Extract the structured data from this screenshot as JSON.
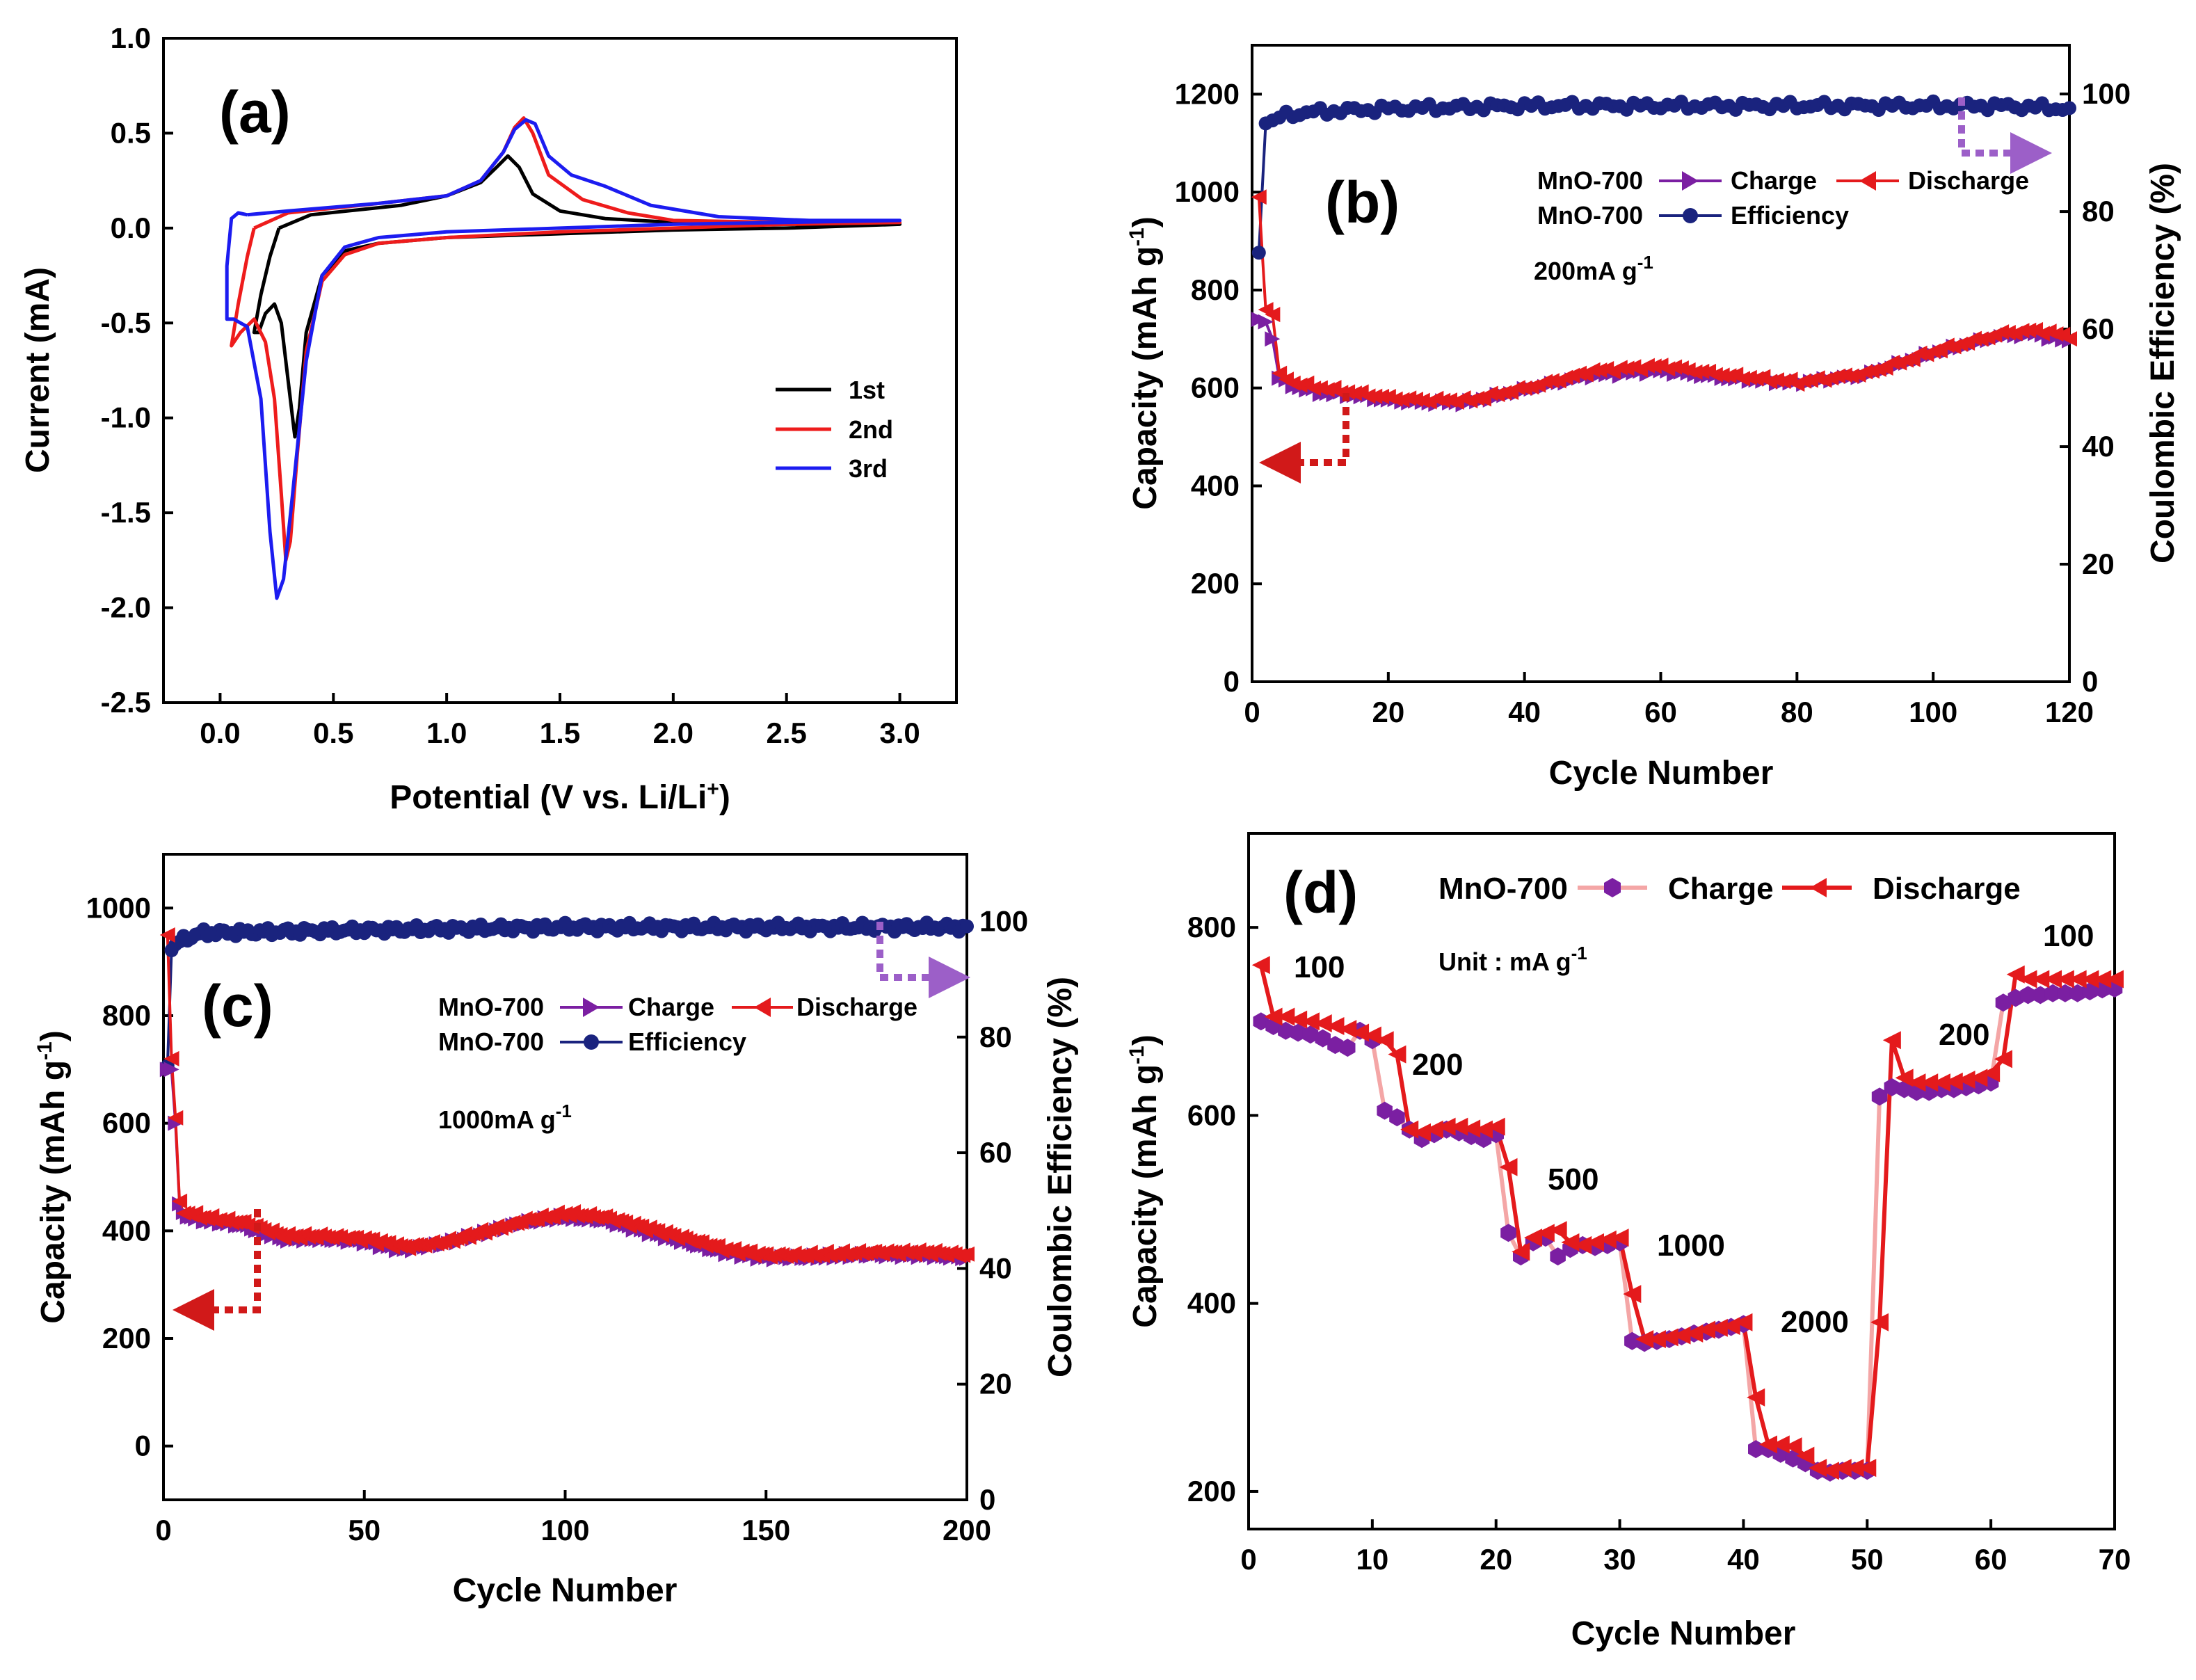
{
  "chart_data": [
    {
      "id": "a",
      "type": "line",
      "panel_label": "(a)",
      "xlabel": "Potential (V vs. Li/Li",
      "xlabel_sup": "+",
      "xlabel_end": ")",
      "ylabel": "Current (mA)",
      "xlim": [
        -0.25,
        3.25
      ],
      "ylim": [
        -2.5,
        1.0
      ],
      "xticks": [
        "0.0",
        "0.5",
        "1.0",
        "1.5",
        "2.0",
        "2.5",
        "3.0"
      ],
      "yticks": [
        "-2.5",
        "-2.0",
        "-1.5",
        "-1.0",
        "-0.5",
        "0.0",
        "0.5",
        "1.0"
      ],
      "series": [
        {
          "name": "1st",
          "color": "#000000",
          "x": [
            0.26,
            0.4,
            0.8,
            1.0,
            1.15,
            1.22,
            1.27,
            1.32,
            1.38,
            1.5,
            1.7,
            2.0,
            2.5,
            3.0,
            2.5,
            2.0,
            1.5,
            1.0,
            0.7,
            0.55,
            0.45,
            0.38,
            0.35,
            0.33,
            0.3,
            0.27,
            0.24,
            0.2,
            0.17,
            0.15,
            0.18,
            0.22,
            0.26
          ],
          "y": [
            0.0,
            0.07,
            0.12,
            0.17,
            0.24,
            0.32,
            0.38,
            0.32,
            0.18,
            0.09,
            0.05,
            0.03,
            0.02,
            0.02,
            0.0,
            -0.01,
            -0.03,
            -0.05,
            -0.08,
            -0.12,
            -0.25,
            -0.55,
            -0.95,
            -1.1,
            -0.8,
            -0.5,
            -0.4,
            -0.45,
            -0.55,
            -0.55,
            -0.35,
            -0.15,
            0.0
          ]
        },
        {
          "name": "2nd",
          "color": "#ee1c1c",
          "x": [
            0.15,
            0.3,
            0.7,
            1.0,
            1.15,
            1.25,
            1.3,
            1.34,
            1.38,
            1.45,
            1.6,
            1.8,
            2.0,
            2.5,
            3.0,
            2.5,
            2.0,
            1.5,
            1.0,
            0.7,
            0.55,
            0.45,
            0.38,
            0.34,
            0.31,
            0.29,
            0.27,
            0.24,
            0.2,
            0.15,
            0.09,
            0.05,
            0.08,
            0.12,
            0.15
          ],
          "y": [
            0.0,
            0.08,
            0.13,
            0.17,
            0.25,
            0.4,
            0.53,
            0.58,
            0.5,
            0.28,
            0.15,
            0.08,
            0.04,
            0.03,
            0.03,
            0.02,
            0.0,
            -0.02,
            -0.05,
            -0.08,
            -0.14,
            -0.28,
            -0.65,
            -1.2,
            -1.65,
            -1.75,
            -1.4,
            -0.9,
            -0.6,
            -0.48,
            -0.55,
            -0.62,
            -0.4,
            -0.15,
            0.0
          ]
        },
        {
          "name": "3rd",
          "color": "#1c1cf0",
          "x": [
            0.12,
            0.3,
            0.7,
            1.0,
            1.15,
            1.25,
            1.3,
            1.35,
            1.39,
            1.45,
            1.55,
            1.7,
            1.9,
            2.2,
            2.6,
            3.0,
            2.5,
            2.0,
            1.5,
            1.0,
            0.7,
            0.55,
            0.45,
            0.38,
            0.32,
            0.28,
            0.25,
            0.22,
            0.18,
            0.12,
            0.06,
            0.03,
            0.03,
            0.05,
            0.08,
            0.12
          ],
          "y": [
            0.07,
            0.09,
            0.13,
            0.17,
            0.25,
            0.4,
            0.52,
            0.57,
            0.55,
            0.38,
            0.28,
            0.22,
            0.12,
            0.06,
            0.04,
            0.04,
            0.03,
            0.02,
            0.0,
            -0.02,
            -0.05,
            -0.1,
            -0.25,
            -0.7,
            -1.4,
            -1.85,
            -1.95,
            -1.6,
            -0.9,
            -0.52,
            -0.48,
            -0.48,
            -0.2,
            0.05,
            0.08,
            0.07
          ]
        }
      ]
    },
    {
      "id": "b",
      "type": "scatter",
      "panel_label": "(b)",
      "xlabel": "Cycle Number",
      "ylabel": "Capacity (mAh g",
      "ylabel_sup": "-1",
      "ylabel_end": ")",
      "y2label": "Coulombic Efficiency (%)",
      "xlim": [
        0,
        120
      ],
      "ylim": [
        0,
        1300
      ],
      "y2lim": [
        0,
        108.3
      ],
      "xticks": [
        "0",
        "20",
        "40",
        "60",
        "80",
        "100",
        "120"
      ],
      "yticks": [
        "0",
        "200",
        "400",
        "600",
        "800",
        "1000",
        "1200"
      ],
      "y2ticks": [
        "0",
        "20",
        "40",
        "60",
        "80",
        "100"
      ],
      "legend": {
        "prefix1": "MnO-700",
        "charge": "Charge",
        "discharge": "Discharge",
        "prefix2": "MnO-700",
        "efficiency": "Efficiency"
      },
      "current_label": "200mA g",
      "current_sup": "-1",
      "cycles": 120,
      "charge_anchors": [
        [
          1,
          740
        ],
        [
          2,
          735
        ],
        [
          3,
          700
        ],
        [
          4,
          620
        ],
        [
          6,
          605
        ],
        [
          10,
          590
        ],
        [
          15,
          585
        ],
        [
          20,
          575
        ],
        [
          25,
          570
        ],
        [
          32,
          570
        ],
        [
          40,
          595
        ],
        [
          50,
          625
        ],
        [
          60,
          635
        ],
        [
          70,
          620
        ],
        [
          80,
          610
        ],
        [
          90,
          625
        ],
        [
          100,
          670
        ],
        [
          110,
          705
        ],
        [
          115,
          710
        ],
        [
          120,
          695
        ]
      ],
      "discharge_anchors": [
        [
          1,
          990
        ],
        [
          2,
          760
        ],
        [
          3,
          750
        ],
        [
          4,
          630
        ],
        [
          6,
          610
        ],
        [
          10,
          600
        ],
        [
          15,
          590
        ],
        [
          20,
          580
        ],
        [
          25,
          575
        ],
        [
          32,
          575
        ],
        [
          40,
          600
        ],
        [
          50,
          635
        ],
        [
          60,
          645
        ],
        [
          70,
          625
        ],
        [
          80,
          612
        ],
        [
          90,
          630
        ],
        [
          100,
          675
        ],
        [
          110,
          712
        ],
        [
          115,
          718
        ],
        [
          120,
          705
        ]
      ],
      "efficiency_anchors": [
        [
          1,
          73
        ],
        [
          2,
          95
        ],
        [
          3,
          95.5
        ],
        [
          5,
          96.5
        ],
        [
          10,
          97
        ],
        [
          20,
          97.5
        ],
        [
          40,
          98
        ],
        [
          60,
          98
        ],
        [
          80,
          98
        ],
        [
          100,
          98
        ],
        [
          110,
          98
        ],
        [
          120,
          97.5
        ]
      ]
    },
    {
      "id": "c",
      "type": "scatter",
      "panel_label": "(c)",
      "xlabel": "Cycle Number",
      "ylabel": "Capacity (mAh g",
      "ylabel_sup": "-1",
      "ylabel_end": ")",
      "y2label": "Coulombic Efficiency (%)",
      "xlim": [
        0,
        200
      ],
      "ylim": [
        -100,
        1100
      ],
      "y2lim": [
        0,
        111.6
      ],
      "xticks": [
        "0",
        "50",
        "100",
        "150",
        "200"
      ],
      "yticks": [
        "0",
        "200",
        "400",
        "600",
        "800",
        "1000"
      ],
      "y2ticks": [
        "0",
        "20",
        "40",
        "60",
        "80",
        "100"
      ],
      "legend": {
        "prefix1": "MnO-700",
        "charge": "Charge",
        "discharge": "Discharge",
        "prefix2": "MnO-700",
        "efficiency": "Efficiency"
      },
      "current_label": "1000mA g",
      "current_sup": "-1",
      "cycles": 200,
      "charge_anchors": [
        [
          1,
          700
        ],
        [
          2,
          700
        ],
        [
          3,
          600
        ],
        [
          4,
          450
        ],
        [
          5,
          430
        ],
        [
          10,
          420
        ],
        [
          20,
          410
        ],
        [
          30,
          385
        ],
        [
          40,
          385
        ],
        [
          50,
          380
        ],
        [
          60,
          365
        ],
        [
          70,
          375
        ],
        [
          80,
          395
        ],
        [
          90,
          415
        ],
        [
          100,
          425
        ],
        [
          110,
          420
        ],
        [
          120,
          400
        ],
        [
          130,
          380
        ],
        [
          140,
          360
        ],
        [
          150,
          350
        ],
        [
          160,
          350
        ],
        [
          175,
          355
        ],
        [
          190,
          355
        ],
        [
          200,
          350
        ]
      ],
      "discharge_anchors": [
        [
          1,
          950
        ],
        [
          2,
          720
        ],
        [
          3,
          610
        ],
        [
          4,
          455
        ],
        [
          5,
          435
        ],
        [
          10,
          425
        ],
        [
          20,
          415
        ],
        [
          30,
          390
        ],
        [
          40,
          390
        ],
        [
          50,
          385
        ],
        [
          60,
          370
        ],
        [
          70,
          380
        ],
        [
          80,
          400
        ],
        [
          90,
          420
        ],
        [
          100,
          432
        ],
        [
          110,
          425
        ],
        [
          120,
          405
        ],
        [
          130,
          385
        ],
        [
          140,
          365
        ],
        [
          150,
          355
        ],
        [
          160,
          355
        ],
        [
          175,
          360
        ],
        [
          190,
          360
        ],
        [
          200,
          355
        ]
      ],
      "efficiency_anchors": [
        [
          1,
          75
        ],
        [
          2,
          95
        ],
        [
          3,
          96
        ],
        [
          5,
          97
        ],
        [
          10,
          98
        ],
        [
          50,
          98.5
        ],
        [
          100,
          99
        ],
        [
          150,
          99
        ],
        [
          200,
          99
        ]
      ]
    },
    {
      "id": "d",
      "type": "line",
      "panel_label": "(d)",
      "xlabel": "Cycle Number",
      "ylabel": "Capacity (mAh g",
      "ylabel_sup": "-1",
      "ylabel_end": ")",
      "xlim": [
        0,
        70
      ],
      "ylim": [
        160,
        900
      ],
      "xticks": [
        "0",
        "10",
        "20",
        "30",
        "40",
        "50",
        "60",
        "70"
      ],
      "yticks": [
        "200",
        "400",
        "600",
        "800"
      ],
      "legend": {
        "prefix": "MnO-700",
        "charge": "Charge",
        "discharge": "Discharge"
      },
      "unit_label": "Unit : mA g",
      "unit_sup": "-1",
      "rate_labels": [
        "100",
        "200",
        "500",
        "1000",
        "2000",
        "200",
        "100"
      ],
      "charge": [
        700,
        695,
        690,
        688,
        686,
        682,
        675,
        672,
        690,
        680,
        605,
        598,
        585,
        575,
        580,
        585,
        582,
        578,
        575,
        580,
        475,
        450,
        465,
        470,
        450,
        458,
        462,
        460,
        462,
        465,
        360,
        358,
        360,
        362,
        365,
        368,
        370,
        372,
        375,
        378,
        245,
        245,
        240,
        235,
        230,
        222,
        220,
        222,
        222,
        222,
        620,
        630,
        628,
        625,
        625,
        628,
        628,
        630,
        632,
        635,
        720,
        725,
        728,
        728,
        730,
        730,
        730,
        732,
        734,
        735
      ],
      "discharge": [
        760,
        705,
        705,
        702,
        700,
        698,
        695,
        692,
        688,
        685,
        680,
        665,
        585,
        582,
        585,
        588,
        588,
        586,
        585,
        588,
        545,
        455,
        470,
        475,
        478,
        465,
        462,
        465,
        468,
        470,
        410,
        362,
        362,
        364,
        366,
        368,
        372,
        374,
        376,
        380,
        300,
        250,
        250,
        248,
        238,
        225,
        222,
        225,
        225,
        225,
        380,
        680,
        640,
        635,
        635,
        635,
        636,
        638,
        640,
        645,
        660,
        750,
        745,
        745,
        745,
        745,
        745,
        745,
        745,
        745
      ]
    }
  ],
  "colors": {
    "charge_b": "#7b1fa2",
    "discharge": "#e41a1c",
    "efficiency": "#1a237e",
    "charge_d_line": "#f4a6a6",
    "charge_d_marker": "#7b1fa2",
    "arrow_purple": "#9c5fc8",
    "arrow_red": "#d11919"
  }
}
